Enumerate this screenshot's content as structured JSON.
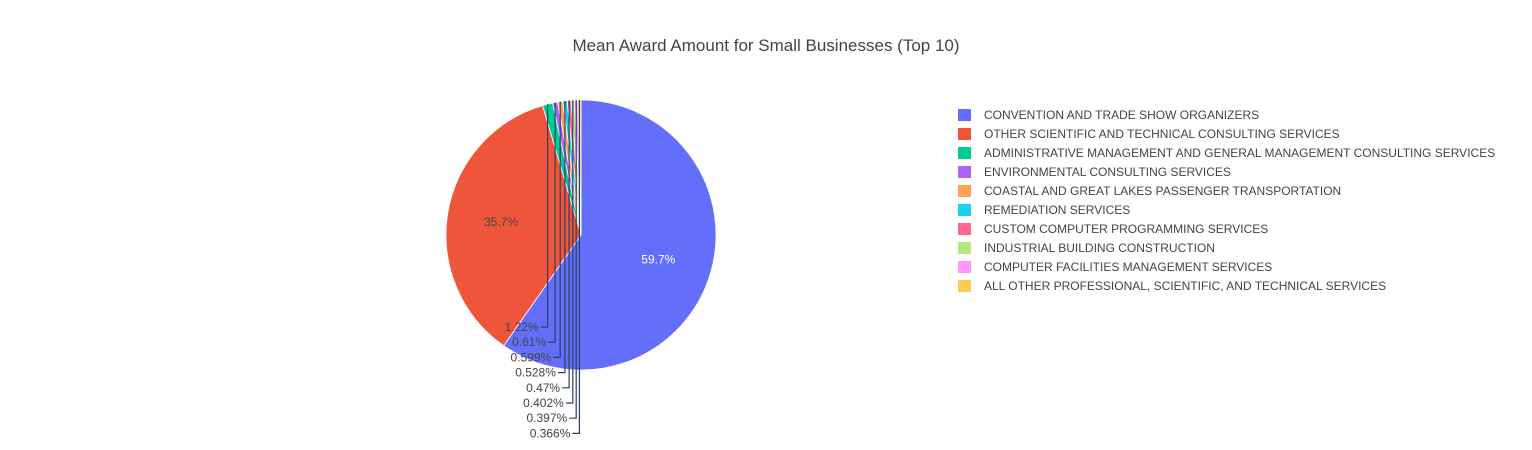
{
  "chart_data": {
    "type": "pie",
    "title": "Mean Award Amount for Small Businesses (Top 10)",
    "legend_position": "right",
    "slices": [
      {
        "label": "CONVENTION AND TRADE SHOW ORGANIZERS",
        "value": 59.7,
        "display": "59.7%",
        "color": "#636efa"
      },
      {
        "label": "OTHER SCIENTIFIC AND TECHNICAL CONSULTING SERVICES",
        "value": 35.7,
        "display": "35.7%",
        "color": "#ef553b"
      },
      {
        "label": "ADMINISTRATIVE MANAGEMENT AND GENERAL MANAGEMENT CONSULTING SERVICES",
        "value": 1.22,
        "display": "1.22%",
        "color": "#00cc96"
      },
      {
        "label": "ENVIRONMENTAL CONSULTING SERVICES",
        "value": 0.61,
        "display": "0.61%",
        "color": "#ab63fa"
      },
      {
        "label": "COASTAL AND GREAT LAKES PASSENGER TRANSPORTATION",
        "value": 0.599,
        "display": "0.599%",
        "color": "#ffa15a"
      },
      {
        "label": "REMEDIATION SERVICES",
        "value": 0.528,
        "display": "0.528%",
        "color": "#19d3f3"
      },
      {
        "label": "CUSTOM COMPUTER PROGRAMMING SERVICES",
        "value": 0.47,
        "display": "0.47%",
        "color": "#ff6692"
      },
      {
        "label": "INDUSTRIAL BUILDING CONSTRUCTION",
        "value": 0.402,
        "display": "0.402%",
        "color": "#b6e880"
      },
      {
        "label": "COMPUTER FACILITIES MANAGEMENT SERVICES",
        "value": 0.397,
        "display": "0.397%",
        "color": "#ff97ff"
      },
      {
        "label": "ALL OTHER PROFESSIONAL, SCIENTIFIC, AND TECHNICAL SERVICES",
        "value": 0.366,
        "display": "0.366%",
        "color": "#fecb52"
      }
    ]
  }
}
